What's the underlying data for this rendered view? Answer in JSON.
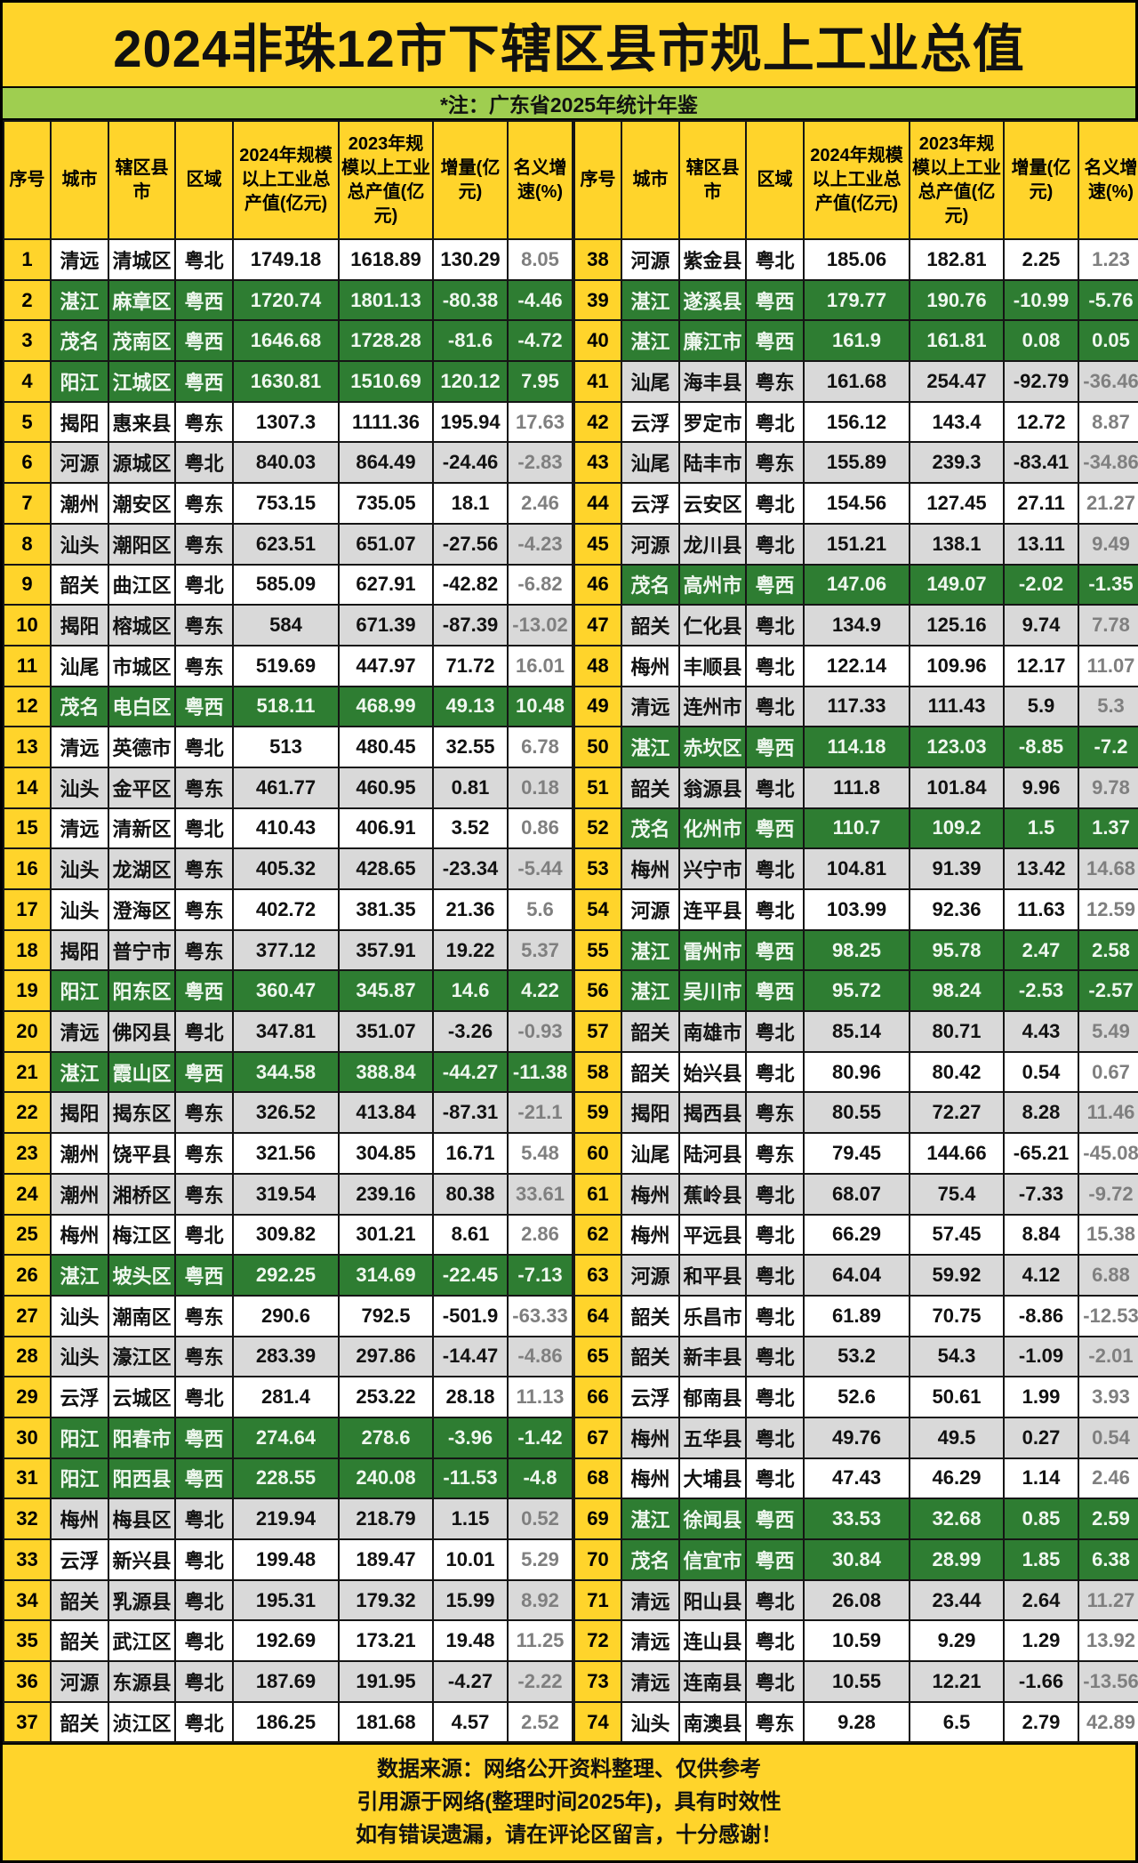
{
  "chart_data": {
    "type": "table",
    "title": "2024非珠12市下辖区县市规上工业总值",
    "note": "*注：广东省2025年统计年鉴",
    "columns": [
      "序号",
      "城市",
      "辖区县市",
      "区域",
      "2024年规模以上工业总产值(亿元)",
      "2023年规模以上工业总产值(亿元)",
      "增量(亿元)",
      "名义增速(%)"
    ],
    "rows": [
      [
        "1",
        "清远",
        "清城区",
        "粤北",
        "1749.18",
        "1618.89",
        "130.29",
        "8.05"
      ],
      [
        "2",
        "湛江",
        "麻章区",
        "粤西",
        "1720.74",
        "1801.13",
        "-80.38",
        "-4.46"
      ],
      [
        "3",
        "茂名",
        "茂南区",
        "粤西",
        "1646.68",
        "1728.28",
        "-81.6",
        "-4.72"
      ],
      [
        "4",
        "阳江",
        "江城区",
        "粤西",
        "1630.81",
        "1510.69",
        "120.12",
        "7.95"
      ],
      [
        "5",
        "揭阳",
        "惠来县",
        "粤东",
        "1307.3",
        "1111.36",
        "195.94",
        "17.63"
      ],
      [
        "6",
        "河源",
        "源城区",
        "粤北",
        "840.03",
        "864.49",
        "-24.46",
        "-2.83"
      ],
      [
        "7",
        "潮州",
        "潮安区",
        "粤东",
        "753.15",
        "735.05",
        "18.1",
        "2.46"
      ],
      [
        "8",
        "汕头",
        "潮阳区",
        "粤东",
        "623.51",
        "651.07",
        "-27.56",
        "-4.23"
      ],
      [
        "9",
        "韶关",
        "曲江区",
        "粤北",
        "585.09",
        "627.91",
        "-42.82",
        "-6.82"
      ],
      [
        "10",
        "揭阳",
        "榕城区",
        "粤东",
        "584",
        "671.39",
        "-87.39",
        "-13.02"
      ],
      [
        "11",
        "汕尾",
        "市城区",
        "粤东",
        "519.69",
        "447.97",
        "71.72",
        "16.01"
      ],
      [
        "12",
        "茂名",
        "电白区",
        "粤西",
        "518.11",
        "468.99",
        "49.13",
        "10.48"
      ],
      [
        "13",
        "清远",
        "英德市",
        "粤北",
        "513",
        "480.45",
        "32.55",
        "6.78"
      ],
      [
        "14",
        "汕头",
        "金平区",
        "粤东",
        "461.77",
        "460.95",
        "0.81",
        "0.18"
      ],
      [
        "15",
        "清远",
        "清新区",
        "粤北",
        "410.43",
        "406.91",
        "3.52",
        "0.86"
      ],
      [
        "16",
        "汕头",
        "龙湖区",
        "粤东",
        "405.32",
        "428.65",
        "-23.34",
        "-5.44"
      ],
      [
        "17",
        "汕头",
        "澄海区",
        "粤东",
        "402.72",
        "381.35",
        "21.36",
        "5.6"
      ],
      [
        "18",
        "揭阳",
        "普宁市",
        "粤东",
        "377.12",
        "357.91",
        "19.22",
        "5.37"
      ],
      [
        "19",
        "阳江",
        "阳东区",
        "粤西",
        "360.47",
        "345.87",
        "14.6",
        "4.22"
      ],
      [
        "20",
        "清远",
        "佛冈县",
        "粤北",
        "347.81",
        "351.07",
        "-3.26",
        "-0.93"
      ],
      [
        "21",
        "湛江",
        "霞山区",
        "粤西",
        "344.58",
        "388.84",
        "-44.27",
        "-11.38"
      ],
      [
        "22",
        "揭阳",
        "揭东区",
        "粤东",
        "326.52",
        "413.84",
        "-87.31",
        "-21.1"
      ],
      [
        "23",
        "潮州",
        "饶平县",
        "粤东",
        "321.56",
        "304.85",
        "16.71",
        "5.48"
      ],
      [
        "24",
        "潮州",
        "湘桥区",
        "粤东",
        "319.54",
        "239.16",
        "80.38",
        "33.61"
      ],
      [
        "25",
        "梅州",
        "梅江区",
        "粤北",
        "309.82",
        "301.21",
        "8.61",
        "2.86"
      ],
      [
        "26",
        "湛江",
        "坡头区",
        "粤西",
        "292.25",
        "314.69",
        "-22.45",
        "-7.13"
      ],
      [
        "27",
        "汕头",
        "潮南区",
        "粤东",
        "290.6",
        "792.5",
        "-501.9",
        "-63.33"
      ],
      [
        "28",
        "汕头",
        "濠江区",
        "粤东",
        "283.39",
        "297.86",
        "-14.47",
        "-4.86"
      ],
      [
        "29",
        "云浮",
        "云城区",
        "粤北",
        "281.4",
        "253.22",
        "28.18",
        "11.13"
      ],
      [
        "30",
        "阳江",
        "阳春市",
        "粤西",
        "274.64",
        "278.6",
        "-3.96",
        "-1.42"
      ],
      [
        "31",
        "阳江",
        "阳西县",
        "粤西",
        "228.55",
        "240.08",
        "-11.53",
        "-4.8"
      ],
      [
        "32",
        "梅州",
        "梅县区",
        "粤北",
        "219.94",
        "218.79",
        "1.15",
        "0.52"
      ],
      [
        "33",
        "云浮",
        "新兴县",
        "粤北",
        "199.48",
        "189.47",
        "10.01",
        "5.29"
      ],
      [
        "34",
        "韶关",
        "乳源县",
        "粤北",
        "195.31",
        "179.32",
        "15.99",
        "8.92"
      ],
      [
        "35",
        "韶关",
        "武江区",
        "粤北",
        "192.69",
        "173.21",
        "19.48",
        "11.25"
      ],
      [
        "36",
        "河源",
        "东源县",
        "粤北",
        "187.69",
        "191.95",
        "-4.27",
        "-2.22"
      ],
      [
        "37",
        "韶关",
        "浈江区",
        "粤北",
        "186.25",
        "181.68",
        "4.57",
        "2.52"
      ],
      [
        "38",
        "河源",
        "紫金县",
        "粤北",
        "185.06",
        "182.81",
        "2.25",
        "1.23"
      ],
      [
        "39",
        "湛江",
        "遂溪县",
        "粤西",
        "179.77",
        "190.76",
        "-10.99",
        "-5.76"
      ],
      [
        "40",
        "湛江",
        "廉江市",
        "粤西",
        "161.9",
        "161.81",
        "0.08",
        "0.05"
      ],
      [
        "41",
        "汕尾",
        "海丰县",
        "粤东",
        "161.68",
        "254.47",
        "-92.79",
        "-36.46"
      ],
      [
        "42",
        "云浮",
        "罗定市",
        "粤北",
        "156.12",
        "143.4",
        "12.72",
        "8.87"
      ],
      [
        "43",
        "汕尾",
        "陆丰市",
        "粤东",
        "155.89",
        "239.3",
        "-83.41",
        "-34.86"
      ],
      [
        "44",
        "云浮",
        "云安区",
        "粤北",
        "154.56",
        "127.45",
        "27.11",
        "21.27"
      ],
      [
        "45",
        "河源",
        "龙川县",
        "粤北",
        "151.21",
        "138.1",
        "13.11",
        "9.49"
      ],
      [
        "46",
        "茂名",
        "高州市",
        "粤西",
        "147.06",
        "149.07",
        "-2.02",
        "-1.35"
      ],
      [
        "47",
        "韶关",
        "仁化县",
        "粤北",
        "134.9",
        "125.16",
        "9.74",
        "7.78"
      ],
      [
        "48",
        "梅州",
        "丰顺县",
        "粤北",
        "122.14",
        "109.96",
        "12.17",
        "11.07"
      ],
      [
        "49",
        "清远",
        "连州市",
        "粤北",
        "117.33",
        "111.43",
        "5.9",
        "5.3"
      ],
      [
        "50",
        "湛江",
        "赤坎区",
        "粤西",
        "114.18",
        "123.03",
        "-8.85",
        "-7.2"
      ],
      [
        "51",
        "韶关",
        "翁源县",
        "粤北",
        "111.8",
        "101.84",
        "9.96",
        "9.78"
      ],
      [
        "52",
        "茂名",
        "化州市",
        "粤西",
        "110.7",
        "109.2",
        "1.5",
        "1.37"
      ],
      [
        "53",
        "梅州",
        "兴宁市",
        "粤北",
        "104.81",
        "91.39",
        "13.42",
        "14.68"
      ],
      [
        "54",
        "河源",
        "连平县",
        "粤北",
        "103.99",
        "92.36",
        "11.63",
        "12.59"
      ],
      [
        "55",
        "湛江",
        "雷州市",
        "粤西",
        "98.25",
        "95.78",
        "2.47",
        "2.58"
      ],
      [
        "56",
        "湛江",
        "吴川市",
        "粤西",
        "95.72",
        "98.24",
        "-2.53",
        "-2.57"
      ],
      [
        "57",
        "韶关",
        "南雄市",
        "粤北",
        "85.14",
        "80.71",
        "4.43",
        "5.49"
      ],
      [
        "58",
        "韶关",
        "始兴县",
        "粤北",
        "80.96",
        "80.42",
        "0.54",
        "0.67"
      ],
      [
        "59",
        "揭阳",
        "揭西县",
        "粤东",
        "80.55",
        "72.27",
        "8.28",
        "11.46"
      ],
      [
        "60",
        "汕尾",
        "陆河县",
        "粤东",
        "79.45",
        "144.66",
        "-65.21",
        "-45.08"
      ],
      [
        "61",
        "梅州",
        "蕉岭县",
        "粤北",
        "68.07",
        "75.4",
        "-7.33",
        "-9.72"
      ],
      [
        "62",
        "梅州",
        "平远县",
        "粤北",
        "66.29",
        "57.45",
        "8.84",
        "15.38"
      ],
      [
        "63",
        "河源",
        "和平县",
        "粤北",
        "64.04",
        "59.92",
        "4.12",
        "6.88"
      ],
      [
        "64",
        "韶关",
        "乐昌市",
        "粤北",
        "61.89",
        "70.75",
        "-8.86",
        "-12.53"
      ],
      [
        "65",
        "韶关",
        "新丰县",
        "粤北",
        "53.2",
        "54.3",
        "-1.09",
        "-2.01"
      ],
      [
        "66",
        "云浮",
        "郁南县",
        "粤北",
        "52.6",
        "50.61",
        "1.99",
        "3.93"
      ],
      [
        "67",
        "梅州",
        "五华县",
        "粤北",
        "49.76",
        "49.5",
        "0.27",
        "0.54"
      ],
      [
        "68",
        "梅州",
        "大埔县",
        "粤北",
        "47.43",
        "46.29",
        "1.14",
        "2.46"
      ],
      [
        "69",
        "湛江",
        "徐闻县",
        "粤西",
        "33.53",
        "32.68",
        "0.85",
        "2.59"
      ],
      [
        "70",
        "茂名",
        "信宜市",
        "粤西",
        "30.84",
        "28.99",
        "1.85",
        "6.38"
      ],
      [
        "71",
        "清远",
        "阳山县",
        "粤北",
        "26.08",
        "23.44",
        "2.64",
        "11.27"
      ],
      [
        "72",
        "清远",
        "连山县",
        "粤北",
        "10.59",
        "9.29",
        "1.29",
        "13.92"
      ],
      [
        "73",
        "清远",
        "连南县",
        "粤北",
        "10.55",
        "12.21",
        "-1.66",
        "-13.56"
      ],
      [
        "74",
        "汕头",
        "南澳县",
        "粤东",
        "9.28",
        "6.5",
        "2.79",
        "42.89"
      ]
    ],
    "footer_lines": [
      "数据来源：网络公开资料整理、仅供参考",
      "引用源于网络(整理时间2025年)，具有时效性",
      "如有错误遗漏，请在评论区留言，十分感谢！"
    ]
  },
  "colors": {
    "title_bg": "#FFD42B",
    "note_bg": "#9FCE50",
    "region_west_row_bg": "#2E7D32",
    "value2024_red_bg": "#D0241F",
    "value2024_pink_bg": "#F6D9D5",
    "alt_row_gray_bg": "#D9D9D9",
    "rate_muted_text": "#7F7F7F"
  }
}
